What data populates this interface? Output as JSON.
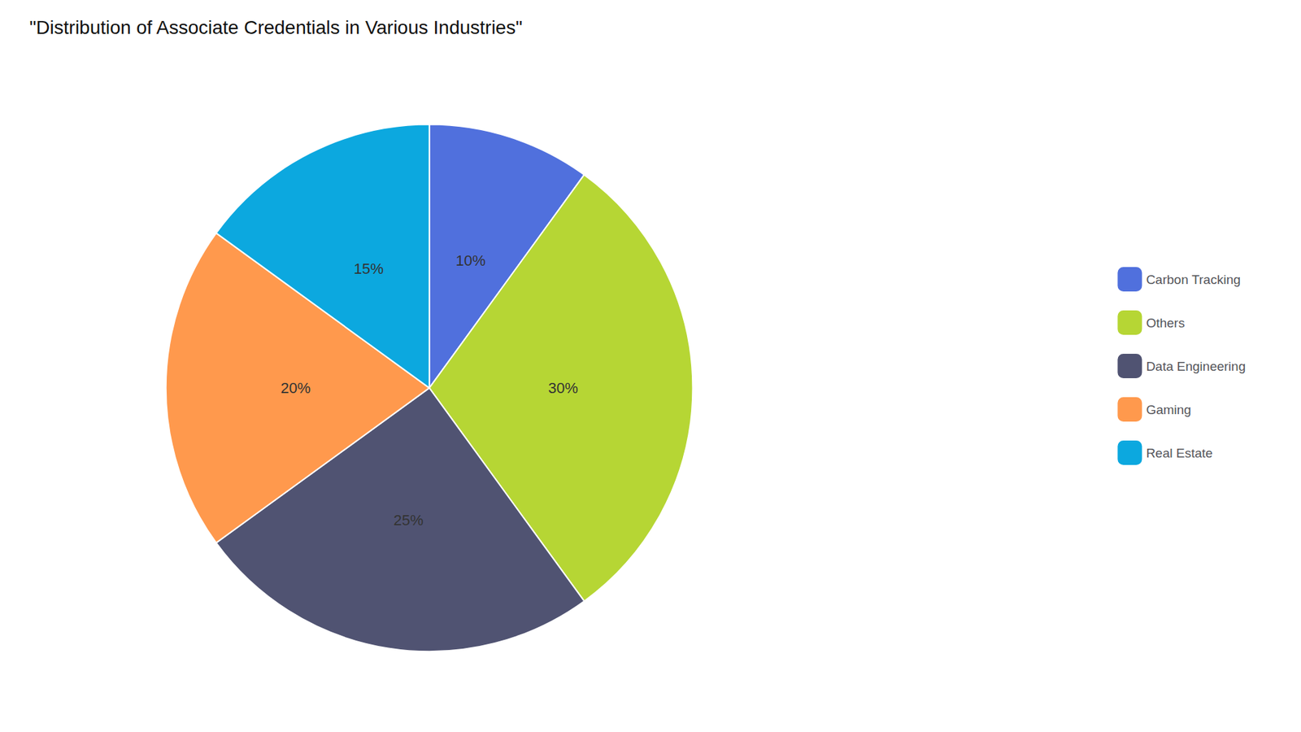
{
  "chart_data": {
    "type": "pie",
    "title": "\"Distribution of Associate Credentials in Various Industries\"",
    "categories": [
      "Carbon Tracking",
      "Others",
      "Data Engineering",
      "Gaming",
      "Real Estate"
    ],
    "values": [
      10,
      30,
      25,
      20,
      15
    ],
    "value_labels": [
      "10%",
      "30%",
      "25%",
      "20%",
      "15%"
    ],
    "data_labels": true,
    "legend": "right"
  }
}
